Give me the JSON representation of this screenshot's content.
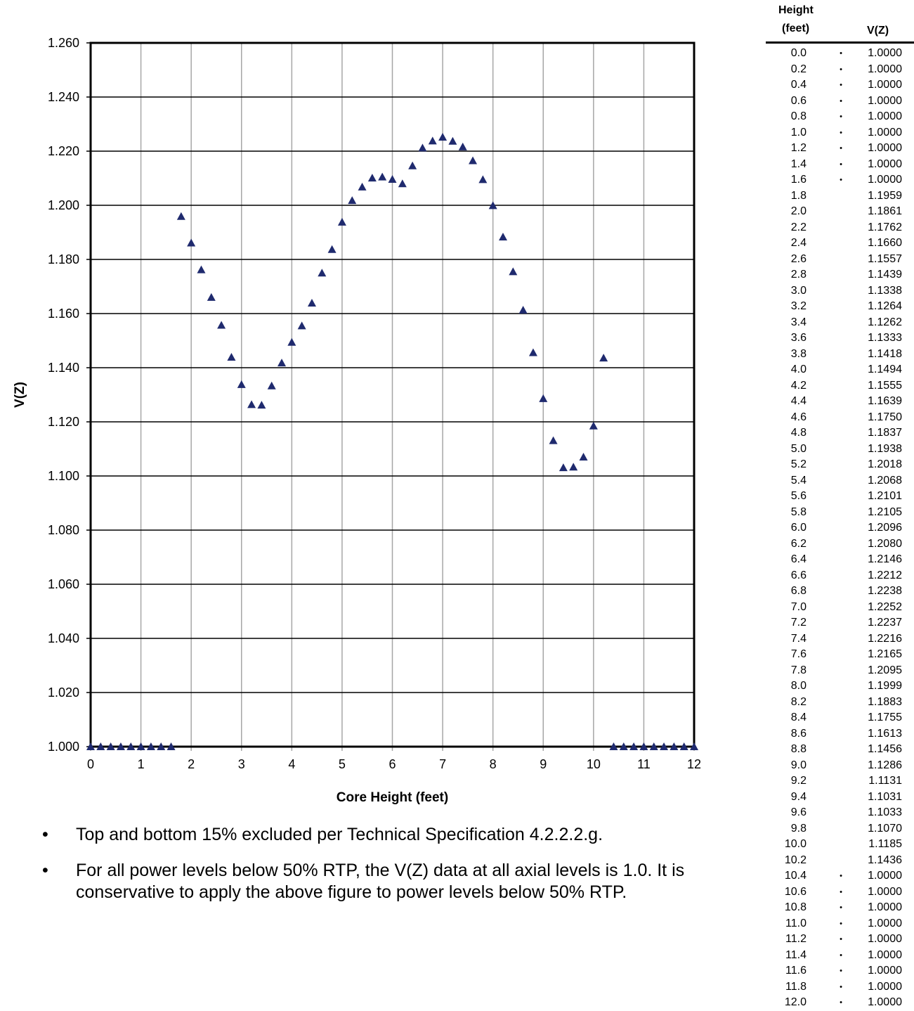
{
  "chart_data": {
    "type": "scatter",
    "title": "",
    "xlabel": "Core Height (feet)",
    "ylabel": "V(Z)",
    "xlim": [
      0,
      12
    ],
    "ylim": [
      1.0,
      1.26
    ],
    "x_ticks": [
      "0",
      "1",
      "2",
      "3",
      "4",
      "5",
      "6",
      "7",
      "8",
      "9",
      "10",
      "11",
      "12"
    ],
    "y_ticks": [
      "1.000",
      "1.020",
      "1.040",
      "1.060",
      "1.080",
      "1.100",
      "1.120",
      "1.140",
      "1.160",
      "1.180",
      "1.200",
      "1.220",
      "1.240",
      "1.260"
    ],
    "grid": true,
    "marker": "triangle",
    "marker_color": "#1f2a6e",
    "series": [
      {
        "x": [
          0.0,
          0.2,
          0.4,
          0.6,
          0.8,
          1.0,
          1.2,
          1.4,
          1.6,
          1.8,
          2.0,
          2.2,
          2.4,
          2.6,
          2.8,
          3.0,
          3.2,
          3.4,
          3.6,
          3.8,
          4.0,
          4.2,
          4.4,
          4.6,
          4.8,
          5.0,
          5.2,
          5.4,
          5.6,
          5.8,
          6.0,
          6.2,
          6.4,
          6.6,
          6.8,
          7.0,
          7.2,
          7.4,
          7.6,
          7.8,
          8.0,
          8.2,
          8.4,
          8.6,
          8.8,
          9.0,
          9.2,
          9.4,
          9.6,
          9.8,
          10.0,
          10.2,
          10.4,
          10.6,
          10.8,
          11.0,
          11.2,
          11.4,
          11.6,
          11.8,
          12.0
        ],
        "y": [
          1.0,
          1.0,
          1.0,
          1.0,
          1.0,
          1.0,
          1.0,
          1.0,
          1.0,
          1.1959,
          1.1861,
          1.1762,
          1.166,
          1.1557,
          1.1439,
          1.1338,
          1.1264,
          1.1262,
          1.1333,
          1.1418,
          1.1494,
          1.1555,
          1.1639,
          1.175,
          1.1837,
          1.1938,
          1.2018,
          1.2068,
          1.2101,
          1.2105,
          1.2096,
          1.208,
          1.2146,
          1.2212,
          1.2238,
          1.2252,
          1.2237,
          1.2216,
          1.2165,
          1.2095,
          1.1999,
          1.1883,
          1.1755,
          1.1613,
          1.1456,
          1.1286,
          1.1131,
          1.1031,
          1.1033,
          1.107,
          1.1185,
          1.1436,
          1.0,
          1.0,
          1.0,
          1.0,
          1.0,
          1.0,
          1.0,
          1.0,
          1.0
        ]
      }
    ]
  },
  "table": {
    "header_height": "Height",
    "header_height_unit": "(feet)",
    "header_vz": "V(Z)",
    "rows": [
      {
        "h": "0.0",
        "v": "1.0000",
        "b": "•"
      },
      {
        "h": "0.2",
        "v": "1.0000",
        "b": "•"
      },
      {
        "h": "0.4",
        "v": "1.0000",
        "b": "•"
      },
      {
        "h": "0.6",
        "v": "1.0000",
        "b": "•"
      },
      {
        "h": "0.8",
        "v": "1.0000",
        "b": "•"
      },
      {
        "h": "1.0",
        "v": "1.0000",
        "b": "•"
      },
      {
        "h": "1.2",
        "v": "1.0000",
        "b": "•"
      },
      {
        "h": "1.4",
        "v": "1.0000",
        "b": "•"
      },
      {
        "h": "1.6",
        "v": "1.0000",
        "b": "•"
      },
      {
        "h": "1.8",
        "v": "1.1959",
        "b": ""
      },
      {
        "h": "2.0",
        "v": "1.1861",
        "b": ""
      },
      {
        "h": "2.2",
        "v": "1.1762",
        "b": ""
      },
      {
        "h": "2.4",
        "v": "1.1660",
        "b": ""
      },
      {
        "h": "2.6",
        "v": "1.1557",
        "b": ""
      },
      {
        "h": "2.8",
        "v": "1.1439",
        "b": ""
      },
      {
        "h": "3.0",
        "v": "1.1338",
        "b": ""
      },
      {
        "h": "3.2",
        "v": "1.1264",
        "b": ""
      },
      {
        "h": "3.4",
        "v": "1.1262",
        "b": ""
      },
      {
        "h": "3.6",
        "v": "1.1333",
        "b": ""
      },
      {
        "h": "3.8",
        "v": "1.1418",
        "b": ""
      },
      {
        "h": "4.0",
        "v": "1.1494",
        "b": ""
      },
      {
        "h": "4.2",
        "v": "1.1555",
        "b": ""
      },
      {
        "h": "4.4",
        "v": "1.1639",
        "b": ""
      },
      {
        "h": "4.6",
        "v": "1.1750",
        "b": ""
      },
      {
        "h": "4.8",
        "v": "1.1837",
        "b": ""
      },
      {
        "h": "5.0",
        "v": "1.1938",
        "b": ""
      },
      {
        "h": "5.2",
        "v": "1.2018",
        "b": ""
      },
      {
        "h": "5.4",
        "v": "1.2068",
        "b": ""
      },
      {
        "h": "5.6",
        "v": "1.2101",
        "b": ""
      },
      {
        "h": "5.8",
        "v": "1.2105",
        "b": ""
      },
      {
        "h": "6.0",
        "v": "1.2096",
        "b": ""
      },
      {
        "h": "6.2",
        "v": "1.2080",
        "b": ""
      },
      {
        "h": "6.4",
        "v": "1.2146",
        "b": ""
      },
      {
        "h": "6.6",
        "v": "1.2212",
        "b": ""
      },
      {
        "h": "6.8",
        "v": "1.2238",
        "b": ""
      },
      {
        "h": "7.0",
        "v": "1.2252",
        "b": ""
      },
      {
        "h": "7.2",
        "v": "1.2237",
        "b": ""
      },
      {
        "h": "7.4",
        "v": "1.2216",
        "b": ""
      },
      {
        "h": "7.6",
        "v": "1.2165",
        "b": ""
      },
      {
        "h": "7.8",
        "v": "1.2095",
        "b": ""
      },
      {
        "h": "8.0",
        "v": "1.1999",
        "b": ""
      },
      {
        "h": "8.2",
        "v": "1.1883",
        "b": ""
      },
      {
        "h": "8.4",
        "v": "1.1755",
        "b": ""
      },
      {
        "h": "8.6",
        "v": "1.1613",
        "b": ""
      },
      {
        "h": "8.8",
        "v": "1.1456",
        "b": ""
      },
      {
        "h": "9.0",
        "v": "1.1286",
        "b": ""
      },
      {
        "h": "9.2",
        "v": "1.1131",
        "b": ""
      },
      {
        "h": "9.4",
        "v": "1.1031",
        "b": ""
      },
      {
        "h": "9.6",
        "v": "1.1033",
        "b": ""
      },
      {
        "h": "9.8",
        "v": "1.1070",
        "b": ""
      },
      {
        "h": "10.0",
        "v": "1.1185",
        "b": ""
      },
      {
        "h": "10.2",
        "v": "1.1436",
        "b": ""
      },
      {
        "h": "10.4",
        "v": "1.0000",
        "b": "•"
      },
      {
        "h": "10.6",
        "v": "1.0000",
        "b": "•"
      },
      {
        "h": "10.8",
        "v": "1.0000",
        "b": "•"
      },
      {
        "h": "11.0",
        "v": "1.0000",
        "b": "•"
      },
      {
        "h": "11.2",
        "v": "1.0000",
        "b": "•"
      },
      {
        "h": "11.4",
        "v": "1.0000",
        "b": "•"
      },
      {
        "h": "11.6",
        "v": "1.0000",
        "b": "•"
      },
      {
        "h": "11.8",
        "v": "1.0000",
        "b": "•"
      },
      {
        "h": "12.0",
        "v": "1.0000",
        "b": "•"
      }
    ]
  },
  "notes": [
    "Top and bottom 15% excluded per Technical Specification 4.2.2.2.g.",
    "For all power levels below 50% RTP, the V(Z) data at all axial levels is 1.0.  It is conservative to apply the above figure to power levels below 50% RTP."
  ]
}
